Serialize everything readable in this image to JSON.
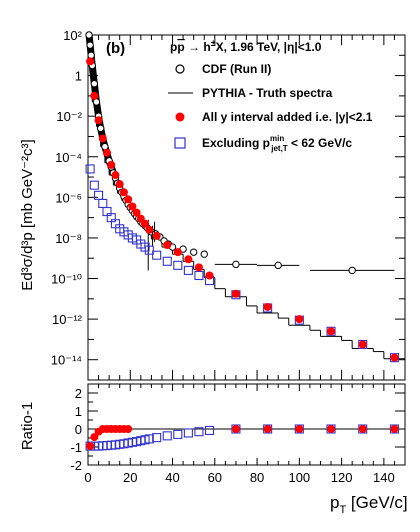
{
  "chart_data": [
    {
      "type": "scatter",
      "panel_label": "(b)",
      "process_title": "pp̄ → h±X, 1.96 TeV, |η|<1.0",
      "ylabel": "Ed³σ/d³p [mb GeV⁻²c³]",
      "yscale": "log",
      "xlim": [
        0,
        150
      ],
      "ylim_log10": [
        -15,
        2
      ],
      "y_tick_labels": [
        "10⁻¹⁴",
        "10⁻¹²",
        "10⁻¹⁰",
        "10⁻⁸",
        "10⁻⁶",
        "10⁻⁴",
        "10⁻²",
        "1",
        "10²"
      ],
      "y_tick_exponents": [
        -14,
        -12,
        -10,
        -8,
        -6,
        -4,
        -2,
        0,
        2
      ],
      "series": [
        {
          "name": "CDF (Run II)",
          "marker": "open-circle",
          "color": "#000000",
          "x": [
            0.5,
            1,
            1.5,
            2,
            3,
            4,
            5,
            6,
            7,
            8,
            9,
            10,
            11,
            12,
            13,
            14,
            15,
            16,
            17,
            18,
            19,
            20,
            21,
            22,
            23,
            24,
            25,
            26,
            27,
            28,
            29,
            30,
            32,
            34,
            36,
            38,
            40,
            45,
            50,
            55,
            70,
            90,
            125
          ],
          "log10_y": [
            2.0,
            1.5,
            1.0,
            0.5,
            -0.4,
            -1.3,
            -2.0,
            -2.6,
            -3.1,
            -3.5,
            -3.85,
            -4.2,
            -4.5,
            -4.8,
            -5.05,
            -5.3,
            -5.55,
            -5.75,
            -5.95,
            -6.15,
            -6.35,
            -6.5,
            -6.65,
            -6.8,
            -6.95,
            -7.05,
            -7.2,
            -7.3,
            -7.4,
            -7.5,
            -7.6,
            -7.7,
            -7.8,
            -7.95,
            -8.15,
            -8.3,
            -8.45,
            -8.55,
            -8.7,
            -8.8,
            -9.3,
            -9.35,
            -9.6
          ],
          "x_error": [
            0,
            0,
            0,
            0,
            0,
            0,
            0,
            0,
            0,
            0,
            0,
            0,
            0,
            0,
            0,
            0,
            0,
            0,
            0,
            0,
            0,
            0,
            0,
            0,
            0,
            0,
            0,
            0,
            0,
            0,
            0,
            0,
            0,
            0,
            0,
            0,
            0,
            0,
            0,
            0,
            10,
            10,
            20
          ]
        },
        {
          "name": "PYTHIA - Truth spectra",
          "marker": "line-histogram",
          "color": "#000000",
          "bin_edges": [
            0,
            2,
            4,
            6,
            8,
            10,
            12,
            14,
            16,
            18,
            20,
            22,
            24,
            26,
            28,
            30,
            35,
            40,
            45,
            50,
            55,
            60,
            65,
            75,
            80,
            90,
            95,
            105,
            110,
            120,
            125,
            135,
            140,
            150
          ],
          "log10_y": [
            0.6,
            -1.3,
            -2.5,
            -3.5,
            -4.3,
            -4.9,
            -5.4,
            -5.8,
            -6.15,
            -6.45,
            -6.75,
            -7.05,
            -7.3,
            -7.5,
            -7.75,
            -8.05,
            -8.45,
            -8.8,
            -9.15,
            -9.55,
            -9.95,
            -10.5,
            -10.9,
            -11.35,
            -11.7,
            -11.95,
            -12.3,
            -12.55,
            -12.85,
            -13.05,
            -13.45,
            -13.6,
            -13.95
          ]
        },
        {
          "name": "All y interval added i.e. |y|<2.1",
          "marker": "filled-circle",
          "color": "#ff0000",
          "x": [
            1,
            3,
            5,
            7,
            9,
            11,
            13,
            15,
            17,
            19,
            21,
            23,
            25,
            27,
            29,
            32.5,
            37.5,
            42.5,
            47.5,
            52.5,
            57.5,
            70,
            85,
            100,
            115,
            130,
            145
          ],
          "log10_y": [
            0.7,
            -1.0,
            -2.2,
            -3.1,
            -3.8,
            -4.4,
            -4.9,
            -5.35,
            -5.75,
            -6.1,
            -6.45,
            -6.75,
            -7.05,
            -7.3,
            -7.6,
            -7.9,
            -8.35,
            -8.7,
            -9.05,
            -9.45,
            -9.85,
            -10.75,
            -11.4,
            -12.0,
            -12.6,
            -13.25,
            -13.9
          ]
        },
        {
          "name": "Excluding p_jet,T^min < 62 GeV/c",
          "marker": "open-square",
          "color": "#3333cc",
          "x": [
            1,
            3,
            5,
            7,
            9,
            11,
            13,
            15,
            17,
            19,
            21,
            23,
            25,
            27,
            29,
            32.5,
            37.5,
            42.5,
            47.5,
            52.5,
            57.5,
            70,
            85,
            100,
            115,
            130,
            145
          ],
          "log10_y": [
            -4.6,
            -5.4,
            -5.9,
            -6.3,
            -6.7,
            -7.0,
            -7.3,
            -7.55,
            -7.7,
            -7.85,
            -8.0,
            -8.1,
            -8.3,
            -8.45,
            -8.6,
            -8.85,
            -9.15,
            -9.35,
            -9.6,
            -9.85,
            -10.1,
            -10.8,
            -11.45,
            -12.05,
            -12.6,
            -13.25,
            -13.9
          ]
        }
      ]
    },
    {
      "type": "scatter",
      "ylabel": "Ratio-1",
      "xlabel": "p_T [GeV/c]",
      "xlim": [
        0,
        150
      ],
      "ylim": [
        -2,
        2.5
      ],
      "y_tick_labels": [
        "-2",
        "-1",
        "0",
        "1",
        "2"
      ],
      "y_tick_values": [
        -2,
        -1,
        0,
        1,
        2
      ],
      "x_tick_labels": [
        "0",
        "20",
        "40",
        "60",
        "80",
        "100",
        "120",
        "140"
      ],
      "x_tick_values": [
        0,
        20,
        40,
        60,
        80,
        100,
        120,
        140
      ],
      "reference_line": 0,
      "series": [
        {
          "name": "All y interval added i.e. |y|<2.1",
          "marker": "filled-circle",
          "color": "#ff0000",
          "x": [
            1,
            3,
            5,
            7,
            9,
            11,
            13,
            15,
            17,
            19,
            70,
            85,
            100,
            115,
            130,
            145
          ],
          "y": [
            -0.95,
            -0.45,
            -0.15,
            0.0,
            0.0,
            0.0,
            0.0,
            0.0,
            0.0,
            0.0,
            0.0,
            0.0,
            0.0,
            0.0,
            0.0,
            0.0
          ]
        },
        {
          "name": "Excluding p_jet,T^min < 62 GeV/c",
          "marker": "open-square",
          "color": "#3333cc",
          "x": [
            1,
            3,
            5,
            7,
            9,
            11,
            13,
            15,
            17,
            19,
            21,
            23,
            25,
            27,
            29,
            32.5,
            37.5,
            42.5,
            47.5,
            52.5,
            57.5,
            70,
            85,
            100,
            115,
            130,
            145
          ],
          "y": [
            -0.95,
            -0.95,
            -0.95,
            -0.93,
            -0.92,
            -0.9,
            -0.88,
            -0.85,
            -0.82,
            -0.78,
            -0.74,
            -0.7,
            -0.65,
            -0.6,
            -0.55,
            -0.48,
            -0.38,
            -0.3,
            -0.22,
            -0.15,
            -0.08,
            0.0,
            0.0,
            0.0,
            0.0,
            0.0,
            0.0
          ]
        }
      ]
    }
  ],
  "legend": {
    "cdf_label": "CDF (Run II)",
    "pythia_label": "PYTHIA - Truth spectra",
    "ally_label": "All y interval added i.e. |y|<2.1",
    "excl_label_main": "Excluding p",
    "excl_label_sup": "min",
    "excl_label_sub": "jet,T",
    "excl_label_tail": " < 62 GeV/c"
  },
  "texts": {
    "panel_label": "(b)",
    "process_p": "p",
    "process_pbar": "p",
    "process_rest": " → h",
    "process_pm": "±",
    "process_tail": "X, 1.96 TeV, |η|<1.0",
    "ylabel_top": "Ed³σ/d³p [mb GeV⁻²c³]",
    "ylabel_bottom": "Ratio-1",
    "xlabel_p": "p",
    "xlabel_sub": "T",
    "xlabel_tail": " [GeV/c]"
  }
}
